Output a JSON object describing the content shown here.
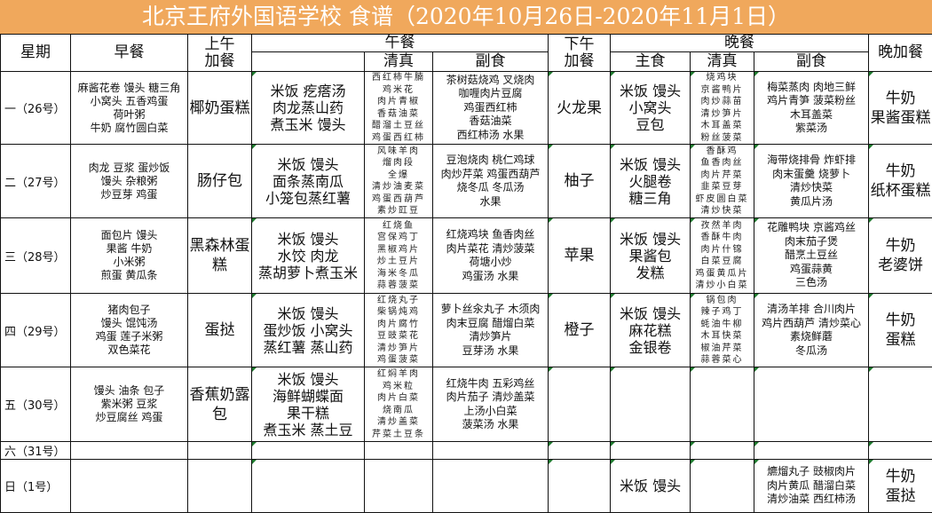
{
  "title": "北京王府外国语学校 食谱（2020年10月26日-2020年11月1日）",
  "headers": {
    "day": "星期",
    "breakfast": "早餐",
    "am_snack": "上午\n加餐",
    "lunch": "午餐",
    "lunch_halal": "清真",
    "lunch_side": "副食",
    "pm_snack": "下午\n加餐",
    "dinner": "晚餐",
    "dinner_staple": "主食",
    "dinner_halal": "清真",
    "dinner_side": "副食",
    "night_snack": "晚加餐"
  },
  "rows": [
    {
      "day": "一（26号）",
      "breakfast": "麻酱花卷  馒头 糖三角\n小窝头 五香鸡蛋\n荷叶粥\n牛奶  腐竹圆白菜",
      "am_snack": "椰奶蛋糕",
      "lunch_main": "米饭 疙瘩汤\n肉龙蒸山药\n煮玉米 馒头",
      "lunch_halal": "西红柿牛腩\n鸡米花\n肉片青椒\n香菇油菜\n醋溜土豆丝\n鸡蛋西红柿",
      "lunch_side": "茶树菇烧鸡  叉烧肉\n咖喱肉片豆腐\n鸡蛋西红柿\n香菇油菜\n西红柿汤 水果",
      "pm_snack": "火龙果",
      "dinner_staple": "米饭 馒头\n小窝头\n豆包",
      "dinner_halal": "烧鸡块\n京酱鸭片\n肉炒蒜苗\n清炒笋片\n木耳盖菜\n粉丝菠菜",
      "dinner_side": "梅菜蒸肉 肉地三鲜\n鸡片青笋  菠菜粉丝\n木耳盖菜\n紫菜汤",
      "night_snack": "牛奶\n果酱蛋糕"
    },
    {
      "day": "二（27号）",
      "breakfast": "肉龙 豆浆  蛋炒饭\n馒头 杂粮粥\n炒豆芽  鸡蛋",
      "am_snack": "肠仔包",
      "lunch_main": "米饭 馒头\n面条蒸南瓜\n小笼包蒸红薯",
      "lunch_halal": "风味羊肉\n熘肉段\n全爆\n清炒油麦菜\n鸡蛋西葫芦\n素炒豇豆",
      "lunch_side": "豆泡烧肉 桃仁鸡球\n肉炒芹菜 鸡蛋西葫芦\n烧冬瓜 冬瓜汤\n水果",
      "pm_snack": "柚子",
      "dinner_staple": "米饭 馒头\n火腿卷\n糖三角",
      "dinner_halal": "香酥鸡\n鱼香肉丝\n肉片芹菜\n韭菜豆芽\n虾皮圆白菜\n清炒快菜",
      "dinner_side": "海带烧排骨 炸虾排\n肉末蛋羹  烧萝卜\n清炒快菜\n黄瓜片汤",
      "night_snack": "牛奶\n纸杯蛋糕"
    },
    {
      "day": "三（28号）",
      "breakfast": "面包片 馒头\n果酱 牛奶\n小米粥\n煎蛋 黄瓜条",
      "am_snack": "黑森林蛋\n糕",
      "lunch_main": "米饭  馒头\n水饺 肉龙\n蒸胡萝卜煮玉米",
      "lunch_halal": "红烧鱼\n宫保鸡丁\n黑椒鸡片\n炒土豆片\n海米冬瓜\n蒜蓉菠菜",
      "lunch_side": "红烧鸡块  鱼香肉丝\n肉片菜花   清炒菠菜\n荷塘小炒\n鸡蛋汤 水果",
      "pm_snack": "苹果",
      "dinner_staple": "米饭 馒头\n果酱包\n发糕",
      "dinner_halal": "孜然羊肉\n香酥牛肉\n肉片什锦\n白菜豆腐\n鸡蛋黄瓜片\n清炒小白菜",
      "dinner_side": "花雕鸭块 京酱鸡丝\n肉末茄子煲\n醋烹土豆丝\n鸡蛋蒜黄\n三色汤",
      "night_snack": "牛奶\n老婆饼"
    },
    {
      "day": "四（29号）",
      "breakfast": "猪肉包子\n馒头 馄饨汤\n鸡蛋 莲子米粥\n双色菜花",
      "am_snack": "蛋挞",
      "lunch_main": "米饭 馒头\n蛋炒饭 小窝头\n蒸红薯 蒸山药",
      "lunch_halal": "红烧丸子\n柴锅炖鸡\n肉片腐竹\n豆豉菜花\n清炒笋片\n鸡蛋菠菜",
      "lunch_side": "萝卜丝汆丸子 木须肉\n肉末豆腐 醋熘白菜\n清炒笋片\n豆芽汤 水果",
      "pm_snack": "橙子",
      "dinner_staple": "米饭 馒头\n麻花糕\n金银卷",
      "dinner_halal": "锅包肉\n辣子鸡丁\n蚝油牛柳\n木耳快菜\n椒油芹菜\n蒜蓉菜心",
      "dinner_side": "清汤羊排 合川肉片\n鸡片西葫芦  清炒菜心\n素烧鲜蘑\n冬瓜汤",
      "night_snack": "牛奶\n蛋糕"
    },
    {
      "day": "五（30号）",
      "breakfast": "馒头 油条 包子\n紫米粥  豆浆\n炒豆腐丝 鸡蛋",
      "am_snack": "香蕉奶露\n包",
      "lunch_main": "米饭  馒头\n海鲜蝴蝶面\n果干糕\n煮玉米 蒸土豆",
      "lunch_halal": "红焖羊肉\n鸡米粒\n肉片白菜\n烧南瓜\n清炒盖菜\n芹菜土豆条",
      "lunch_side": "红烧牛肉 五彩鸡丝\n肉片茄子 清炒盖菜\n上汤小白菜\n菠菜汤 水果",
      "pm_snack": "",
      "dinner_staple": "",
      "dinner_halal": "",
      "dinner_side": "",
      "night_snack": ""
    },
    {
      "day": "六（31号）",
      "breakfast": "",
      "am_snack": "",
      "lunch_main": "",
      "lunch_halal": "",
      "lunch_side": "",
      "pm_snack": "",
      "dinner_staple": "",
      "dinner_halal": "",
      "dinner_side": "",
      "night_snack": ""
    },
    {
      "day": "日（1号）",
      "breakfast": "",
      "am_snack": "",
      "lunch_main": "",
      "lunch_halal": "",
      "lunch_side": "",
      "pm_snack": "",
      "dinner_staple": "米饭 馒头",
      "dinner_halal": "",
      "dinner_side": "爊熘丸子  豉椒肉片\n肉片黄瓜  醋溜白菜\n清炒油菜   西红柿汤",
      "night_snack": "牛奶\n蛋挞"
    }
  ],
  "colors": {
    "title_bg": "#f0a85c",
    "title_text": "#ffffff",
    "comment_marker": "#1e7a2e"
  }
}
